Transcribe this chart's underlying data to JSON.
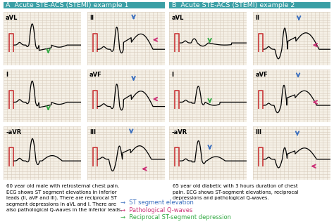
{
  "title_a": "A  Acute STE-ACS (STEMI) example 1",
  "title_b": "B  Acute STE-ACS (STEMI) example 2",
  "title_bg": "#3a9fa5",
  "title_fg": "white",
  "ecg_bg": "#f5f0e6",
  "grid_color": "#d8ccbb",
  "caption_a": "60 year old male with retrosternal chest pain.\nECG shows ST segment elevations in inferior\nleads (II, aVF and III). There are reciprocal ST\nsegment depressions in aVL and I. There are\nalso pathological Q-waves in the inferior leads.",
  "caption_b": "65 year old diabetic with 3 hours duration of chest\npain. ECG shows ST-segment elevations, reciprocal\ndepressions and pathological Q-waves.",
  "legend": [
    {
      "color": "#3b6fbf",
      "label": "ST segment elevation"
    },
    {
      "color": "#cc3377",
      "label": "Pathological Q-waves"
    },
    {
      "color": "#33aa44",
      "label": "Reciprocal ST-segment depression"
    }
  ],
  "arrow_blue": "#3b6fbf",
  "arrow_pink": "#cc3377",
  "arrow_green": "#33aa44",
  "cal_color": "#cc4444"
}
